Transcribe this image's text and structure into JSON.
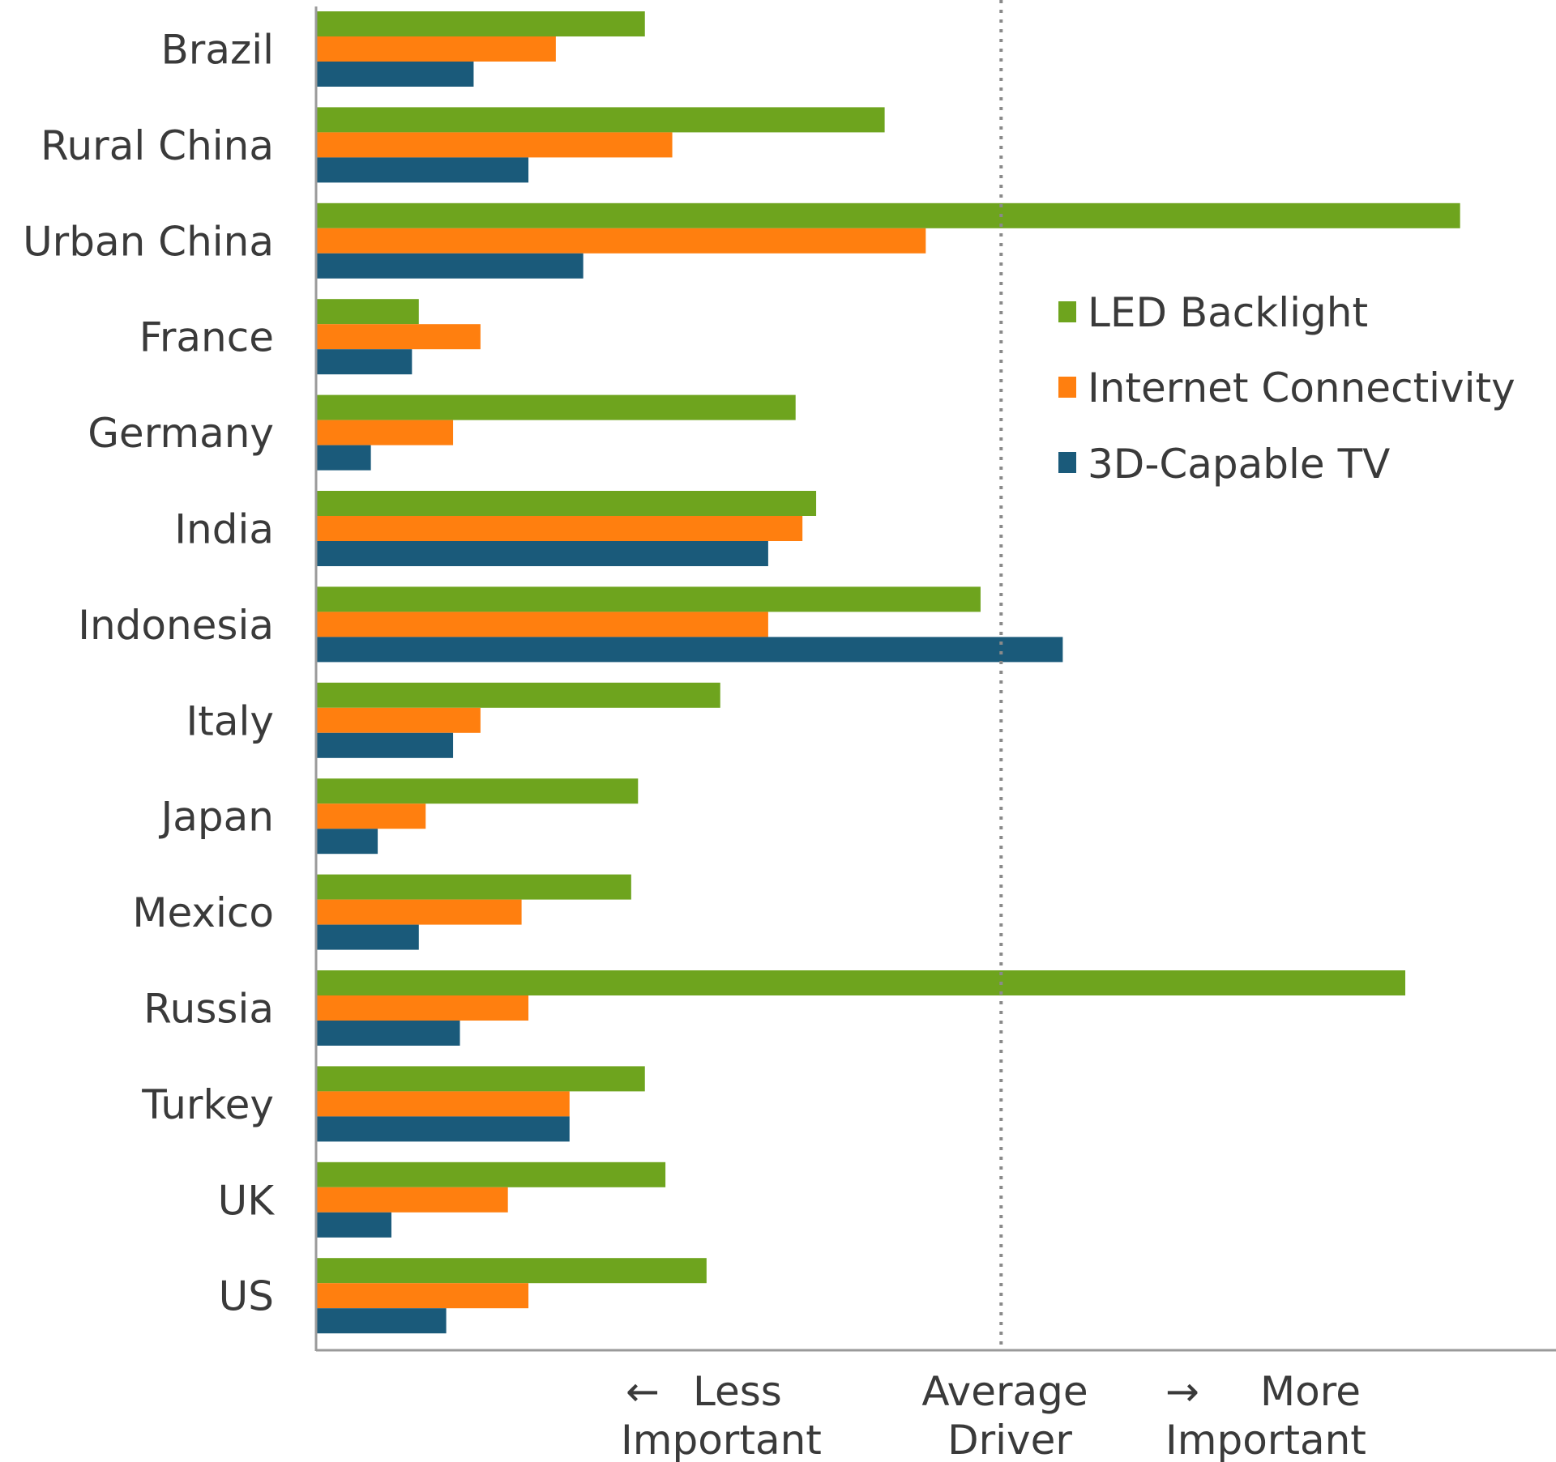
{
  "chart_data": {
    "type": "bar",
    "orientation": "horizontal",
    "title": "",
    "categories": [
      "Brazil",
      "Rural China",
      "Urban China",
      "France",
      "Germany",
      "India",
      "Indonesia",
      "Italy",
      "Japan",
      "Mexico",
      "Russia",
      "Turkey",
      "UK",
      "US"
    ],
    "series": [
      {
        "name": "LED Backlight",
        "color": "#6ea41e",
        "values": [
          0.48,
          0.83,
          1.67,
          0.15,
          0.7,
          0.73,
          0.97,
          0.59,
          0.47,
          0.46,
          1.59,
          0.48,
          0.51,
          0.57
        ]
      },
      {
        "name": "Internet Connectivity",
        "color": "#ff7f0f",
        "values": [
          0.35,
          0.52,
          0.89,
          0.24,
          0.2,
          0.71,
          0.66,
          0.24,
          0.16,
          0.3,
          0.31,
          0.37,
          0.28,
          0.31
        ]
      },
      {
        "name": "3D-Capable TV",
        "color": "#1a5a7a",
        "values": [
          0.23,
          0.31,
          0.39,
          0.14,
          0.08,
          0.66,
          1.09,
          0.2,
          0.09,
          0.15,
          0.21,
          0.37,
          0.11,
          0.19
        ]
      }
    ],
    "xlim": [
      0,
      1.81
    ],
    "reference_line": {
      "value": 1.0,
      "style": "dotted",
      "label": "Average Driver"
    },
    "axis_notes": {
      "less_arrow": "←",
      "less_line1": "Less",
      "less_line2": "Important",
      "average_line1": "Average",
      "average_line2": "Driver",
      "more_arrow": "→",
      "more_line1": "More",
      "more_line2": "Important"
    },
    "legend_position": "right",
    "grid": false
  }
}
